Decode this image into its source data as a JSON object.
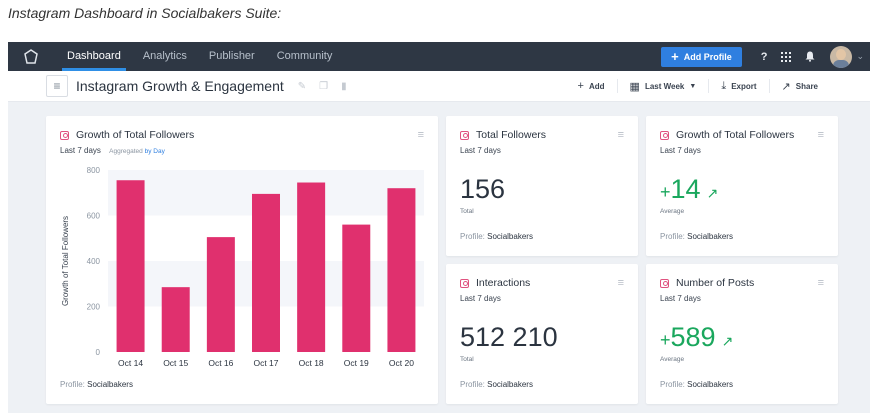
{
  "caption": "Instagram Dashboard in Socialbakers Suite:",
  "nav": {
    "items": [
      {
        "label": "Dashboard",
        "active": true
      },
      {
        "label": "Analytics",
        "active": false
      },
      {
        "label": "Publisher",
        "active": false
      },
      {
        "label": "Community",
        "active": false
      }
    ],
    "add_profile_label": "Add Profile",
    "help_label": "?"
  },
  "toolbar": {
    "title": "Instagram Growth & Engagement",
    "add_label": "Add",
    "date_label": "Last Week",
    "export_label": "Export",
    "share_label": "Share"
  },
  "chart_card": {
    "title": "Growth of Total Followers",
    "period": "Last 7 days",
    "agg_prefix": "Aggregated",
    "agg_by": "by Day",
    "profile_label": "Profile:",
    "profile_name": "Socialbakers"
  },
  "chart_data": {
    "type": "bar",
    "categories": [
      "Oct 14",
      "Oct 15",
      "Oct 16",
      "Oct 17",
      "Oct 18",
      "Oct 19",
      "Oct 20"
    ],
    "values": [
      755,
      285,
      505,
      695,
      745,
      560,
      720
    ],
    "ylabel": "Growth of Total Followers",
    "ylim": [
      0,
      800
    ],
    "yticks": [
      0,
      200,
      400,
      600,
      800
    ],
    "color": "#e0306e"
  },
  "cards": {
    "total_followers": {
      "title": "Total Followers",
      "period": "Last 7 days",
      "value": "156",
      "label": "Total",
      "profile_label": "Profile:",
      "profile_name": "Socialbakers"
    },
    "growth": {
      "title": "Growth of Total Followers",
      "period": "Last 7 days",
      "sign": "+",
      "value": "14",
      "label": "Average",
      "profile_label": "Profile:",
      "profile_name": "Socialbakers"
    },
    "interactions": {
      "title": "Interactions",
      "period": "Last 7 days",
      "value": "512 210",
      "label": "Total",
      "profile_label": "Profile:",
      "profile_name": "Socialbakers"
    },
    "posts": {
      "title": "Number of Posts",
      "period": "Last 7 days",
      "sign": "+",
      "value": "589",
      "label": "Average",
      "profile_label": "Profile:",
      "profile_name": "Socialbakers"
    }
  },
  "colors": {
    "accent": "#2f7fe0",
    "positive": "#1aa75d",
    "instagram": "#e0527f"
  }
}
